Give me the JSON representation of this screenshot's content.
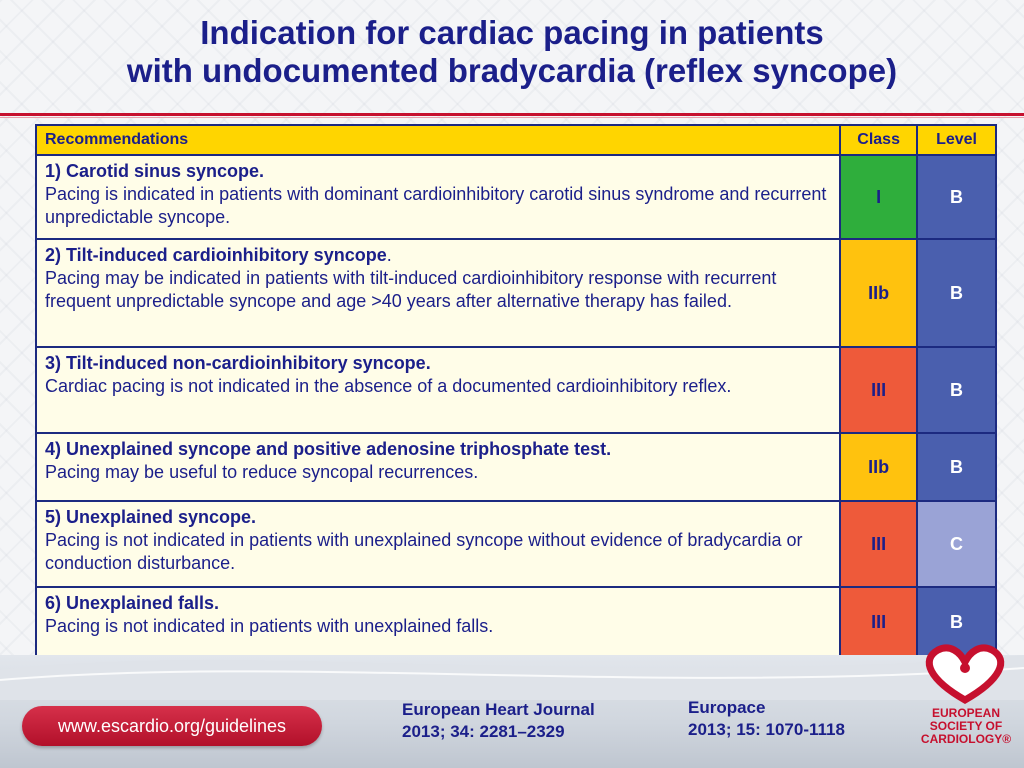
{
  "title": {
    "line1": "Indication for cardiac pacing in patients",
    "line2": "with undocumented bradycardia (reflex syncope)"
  },
  "table": {
    "headers": {
      "recommendations": "Recommendations",
      "class": "Class",
      "level": "Level"
    },
    "rows": [
      {
        "heading": "1) Carotid sinus syncope.",
        "heading_suffix": "",
        "body": "Pacing is indicated in patients with dominant cardioinhibitory carotid sinus syndrome and recurrent unpredictable syncope.",
        "class": "I",
        "level": "B",
        "class_color": "#2fae3c",
        "level_color": "#4a5fae"
      },
      {
        "heading": "2) Tilt-induced cardioinhibitory syncope",
        "heading_suffix": ".",
        "body": "Pacing may be indicated in patients with tilt-induced cardioinhibitory response with recurrent frequent unpredictable syncope and age >40 years after alternative therapy has failed.",
        "class": "IIb",
        "level": "B",
        "class_color": "#ffc20e",
        "level_color": "#4a5fae"
      },
      {
        "heading": "3) Tilt-induced non-cardioinhibitory syncope.",
        "heading_suffix": "",
        "body": "Cardiac pacing is not indicated in the absence of a documented cardioinhibitory reflex.",
        "class": "III",
        "level": "B",
        "class_color": "#ee5a3a",
        "level_color": "#4a5fae"
      },
      {
        "heading": "4) Unexplained syncope and positive adenosine triphosphate test.",
        "heading_suffix": "",
        "body": "Pacing may be useful to reduce syncopal recurrences.",
        "class": "IIb",
        "level": "B",
        "class_color": "#ffc20e",
        "level_color": "#4a5fae"
      },
      {
        "heading": "5) Unexplained syncope.",
        "heading_suffix": "",
        "body": "Pacing is not indicated in patients with unexplained syncope without evidence of bradycardia or conduction disturbance.",
        "class": "III",
        "level": "C",
        "class_color": "#ee5a3a",
        "level_color": "#9aa3d6"
      },
      {
        "heading": "6) Unexplained falls.",
        "heading_suffix": "",
        "body": "Pacing is not indicated in patients with unexplained falls.",
        "class": "III",
        "level": "B",
        "class_color": "#ee5a3a",
        "level_color": "#4a5fae"
      }
    ]
  },
  "footer": {
    "url": "www.escardio.org/guidelines",
    "ref1": {
      "line1": "European Heart Journal",
      "line2": "2013; 34: 2281–2329"
    },
    "ref2": {
      "line1": "Europace",
      "line2": "2013; 15: 1070-1118"
    },
    "logo": {
      "line1": "EUROPEAN",
      "line2": "SOCIETY OF",
      "line3": "CARDIOLOGY®",
      "icon": "esc-heart-logo-icon",
      "color": "#c6102e"
    }
  }
}
